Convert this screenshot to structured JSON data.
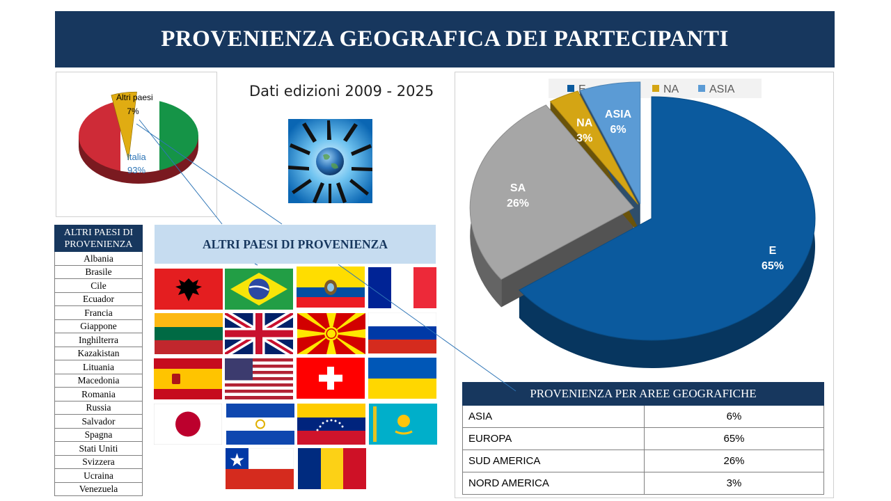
{
  "title": "PROVENIENZA GEOGRAFICA DEI PARTECIPANTI",
  "subtitle": "Dati edizioni  2009 - 2025",
  "flags_banner": "ALTRI PAESI DI PROVENIENZA",
  "other_countries_table": {
    "header_line1": "ALTRI PAESI DI",
    "header_line2": "PROVENIENZA",
    "countries": [
      "Albania",
      "Brasile",
      "Cile",
      "Ecuador",
      "Francia",
      "Giappone",
      "Inghilterra",
      "Kazakistan",
      "Lituania",
      "Macedonia",
      "Romania",
      "Russia",
      "Salvador",
      "Spagna",
      "Stati Uniti",
      "Svizzera",
      "Ucraina",
      "Venezuela"
    ]
  },
  "region_table": {
    "header": "PROVENIENZA PER AREE GEOGRAFICHE",
    "rows": [
      {
        "label": "ASIA",
        "value": "6%"
      },
      {
        "label": "EUROPA",
        "value": "65%"
      },
      {
        "label": "SUD AMERICA",
        "value": "26%"
      },
      {
        "label": "NORD AMERICA",
        "value": "3%"
      }
    ]
  },
  "chart_data": [
    {
      "type": "pie",
      "slices": [
        {
          "label": "Italia",
          "value": 93,
          "value_label": "93%",
          "color": "#ffffff"
        },
        {
          "label": "Altri paesi",
          "value": 7,
          "value_label": "7%",
          "color": "#e0ac12"
        }
      ],
      "flag_colors": [
        "#009246",
        "#ffffff",
        "#ce2b37"
      ]
    },
    {
      "type": "pie",
      "legend_position": "top",
      "slices": [
        {
          "label": "E",
          "value": 65,
          "value_label": "65%",
          "color": "#0b5a9e"
        },
        {
          "label": "SA",
          "value": 26,
          "value_label": "26%",
          "color": "#a6a6a6"
        },
        {
          "label": "NA",
          "value": 3,
          "value_label": "3%",
          "color": "#d4a514"
        },
        {
          "label": "ASIA",
          "value": 6,
          "value_label": "6%",
          "color": "#5b9bd5"
        }
      ]
    }
  ]
}
